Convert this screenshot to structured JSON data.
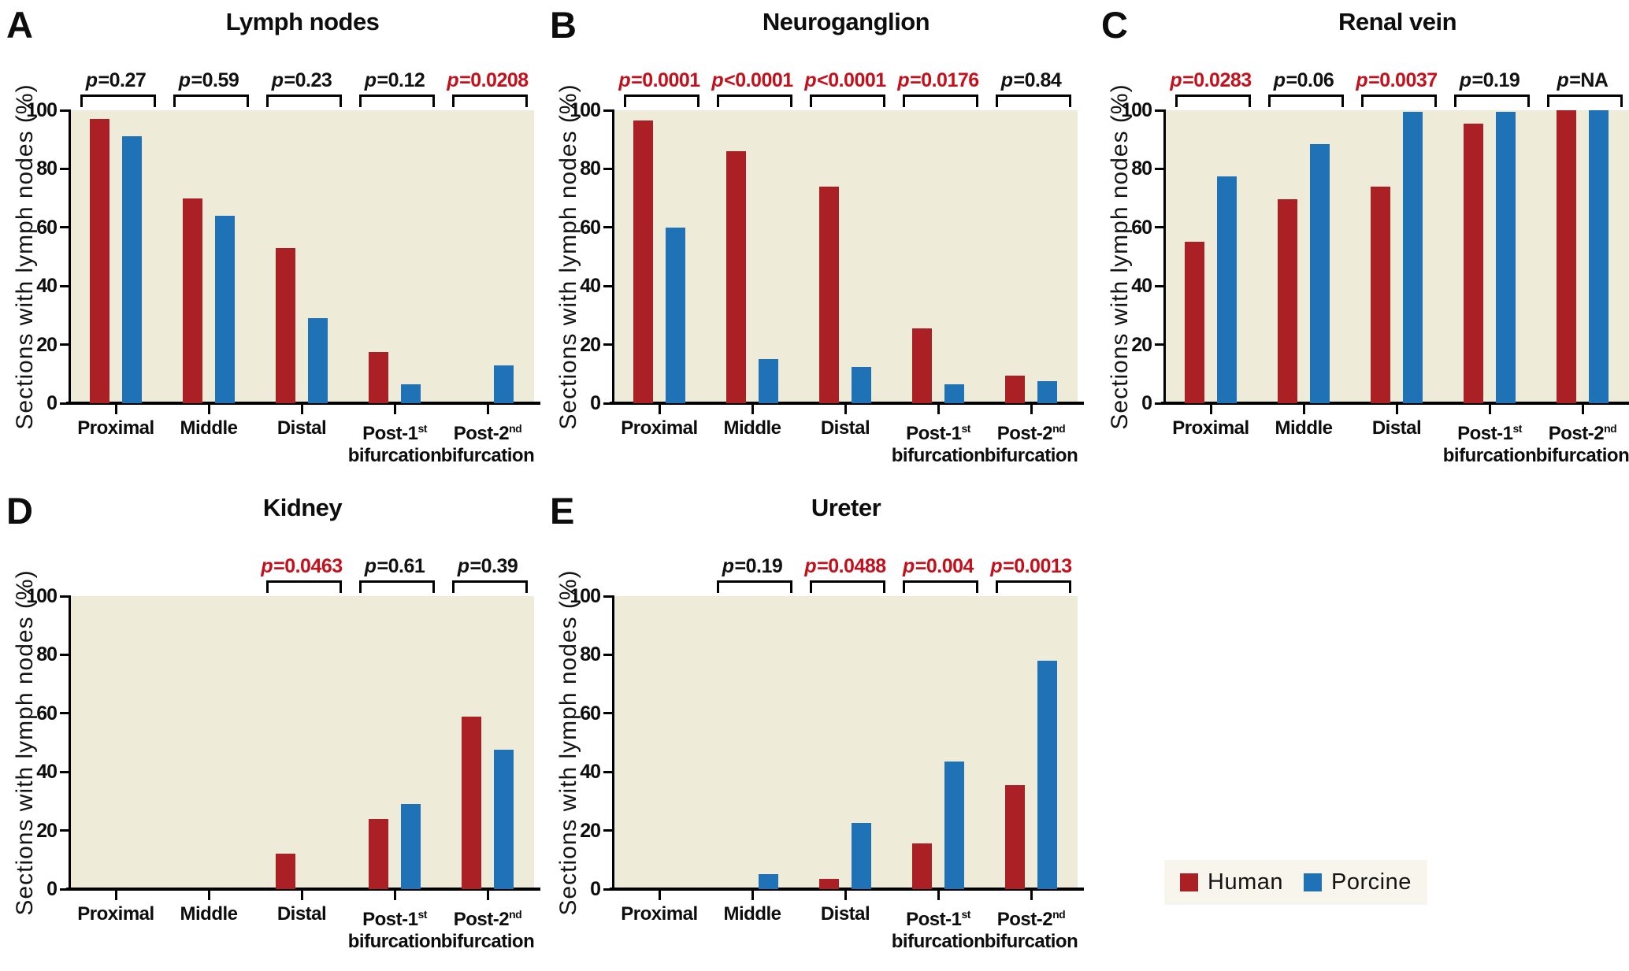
{
  "figure": {
    "y_axis": {
      "label": "Sections with lymph nodes (%)",
      "ticks": [
        0,
        20,
        40,
        60,
        80,
        100
      ],
      "min": 0,
      "max": 100
    },
    "category_display": [
      {
        "base": "Proximal",
        "sup": "",
        "line2": ""
      },
      {
        "base": "Middle",
        "sup": "",
        "line2": ""
      },
      {
        "base": "Distal",
        "sup": "",
        "line2": ""
      },
      {
        "base": "Post-1",
        "sup": "st",
        "line2": "bifurcation"
      },
      {
        "base": "Post-2",
        "sup": "nd",
        "line2": "bifurcation"
      }
    ],
    "legend": [
      {
        "label": "Human",
        "color": "#ab2024"
      },
      {
        "label": "Porcine",
        "color": "#1e72b5"
      }
    ],
    "colors": {
      "human": "#ab2024",
      "porcine": "#1e72b5",
      "p_significant": "#c5101c",
      "p_not_significant": "#111111",
      "plot_background": "#efebd9",
      "axis": "#000000"
    }
  },
  "chart_data": [
    {
      "type": "bar",
      "letter": "A",
      "title": "Lymph nodes",
      "ylabel": "Sections with lymph nodes (%)",
      "ylim": [
        0,
        100
      ],
      "categories": [
        "Proximal",
        "Middle",
        "Distal",
        "Post-1st bifurcation",
        "Post-2nd bifurcation"
      ],
      "series": [
        {
          "name": "Human",
          "values": [
            97,
            70,
            53,
            17.5,
            0
          ]
        },
        {
          "name": "Porcine",
          "values": [
            91,
            64,
            29,
            6.5,
            13
          ]
        }
      ],
      "p_values": [
        {
          "index": 0,
          "pair": "Proximal",
          "label": "p=0.27",
          "significant": false
        },
        {
          "index": 1,
          "pair": "Middle",
          "label": "p=0.59",
          "significant": false
        },
        {
          "index": 2,
          "pair": "Distal",
          "label": "p=0.23",
          "significant": false
        },
        {
          "index": 3,
          "pair": "Post-1st bifurcation",
          "label": "p=0.12",
          "significant": false
        },
        {
          "index": 4,
          "pair": "Post-2nd bifurcation",
          "label": "p=0.0208",
          "significant": true
        }
      ]
    },
    {
      "type": "bar",
      "letter": "B",
      "title": "Neuroganglion",
      "ylabel": "Sections with lymph nodes (%)",
      "ylim": [
        0,
        100
      ],
      "categories": [
        "Proximal",
        "Middle",
        "Distal",
        "Post-1st bifurcation",
        "Post-2nd bifurcation"
      ],
      "series": [
        {
          "name": "Human",
          "values": [
            96.5,
            86,
            74,
            25.5,
            9.5
          ]
        },
        {
          "name": "Porcine",
          "values": [
            60,
            15,
            12.5,
            6.5,
            7.5
          ]
        }
      ],
      "p_values": [
        {
          "index": 0,
          "pair": "Proximal",
          "label": "p=0.0001",
          "significant": true
        },
        {
          "index": 1,
          "pair": "Middle",
          "label": "p<0.0001",
          "significant": true
        },
        {
          "index": 2,
          "pair": "Distal",
          "label": "p<0.0001",
          "significant": true
        },
        {
          "index": 3,
          "pair": "Post-1st bifurcation",
          "label": "p=0.0176",
          "significant": true
        },
        {
          "index": 4,
          "pair": "Post-2nd bifurcation",
          "label": "p=0.84",
          "significant": false
        }
      ]
    },
    {
      "type": "bar",
      "letter": "C",
      "title": "Renal vein",
      "ylabel": "Sections with lymph nodes (%)",
      "ylim": [
        0,
        100
      ],
      "categories": [
        "Proximal",
        "Middle",
        "Distal",
        "Post-1st bifurcation",
        "Post-2nd bifurcation"
      ],
      "series": [
        {
          "name": "Human",
          "values": [
            55,
            69.5,
            74,
            95.5,
            100
          ]
        },
        {
          "name": "Porcine",
          "values": [
            77.5,
            88.5,
            99.5,
            99.5,
            100
          ]
        }
      ],
      "p_values": [
        {
          "index": 0,
          "pair": "Proximal",
          "label": "p=0.0283",
          "significant": true
        },
        {
          "index": 1,
          "pair": "Middle",
          "label": "p=0.06",
          "significant": false
        },
        {
          "index": 2,
          "pair": "Distal",
          "label": "p=0.0037",
          "significant": true
        },
        {
          "index": 3,
          "pair": "Post-1st bifurcation",
          "label": "p=0.19",
          "significant": false
        },
        {
          "index": 4,
          "pair": "Post-2nd bifurcation",
          "label": "p=NA",
          "significant": false
        }
      ]
    },
    {
      "type": "bar",
      "letter": "D",
      "title": "Kidney",
      "ylabel": "Sections with lymph nodes (%)",
      "ylim": [
        0,
        100
      ],
      "categories": [
        "Proximal",
        "Middle",
        "Distal",
        "Post-1st bifurcation",
        "Post-2nd bifurcation"
      ],
      "series": [
        {
          "name": "Human",
          "values": [
            0,
            0,
            12,
            24,
            59
          ]
        },
        {
          "name": "Porcine",
          "values": [
            0,
            0,
            0,
            29,
            47.5
          ]
        }
      ],
      "p_values": [
        {
          "index": 2,
          "pair": "Distal",
          "label": "p=0.0463",
          "significant": true
        },
        {
          "index": 3,
          "pair": "Post-1st bifurcation",
          "label": "p=0.61",
          "significant": false
        },
        {
          "index": 4,
          "pair": "Post-2nd bifurcation",
          "label": "p=0.39",
          "significant": false
        }
      ]
    },
    {
      "type": "bar",
      "letter": "E",
      "title": "Ureter",
      "ylabel": "Sections with lymph nodes (%)",
      "ylim": [
        0,
        100
      ],
      "categories": [
        "Proximal",
        "Middle",
        "Distal",
        "Post-1st bifurcation",
        "Post-2nd bifurcation"
      ],
      "series": [
        {
          "name": "Human",
          "values": [
            0,
            0,
            3.5,
            15.5,
            35.5
          ]
        },
        {
          "name": "Porcine",
          "values": [
            0,
            5,
            22.5,
            43.5,
            78
          ]
        }
      ],
      "p_values": [
        {
          "index": 1,
          "pair": "Middle",
          "label": "p=0.19",
          "significant": false
        },
        {
          "index": 2,
          "pair": "Distal",
          "label": "p=0.0488",
          "significant": true
        },
        {
          "index": 3,
          "pair": "Post-1st bifurcation",
          "label": "p=0.004",
          "significant": true
        },
        {
          "index": 4,
          "pair": "Post-2nd bifurcation",
          "label": "p=0.0013",
          "significant": true
        }
      ]
    }
  ]
}
